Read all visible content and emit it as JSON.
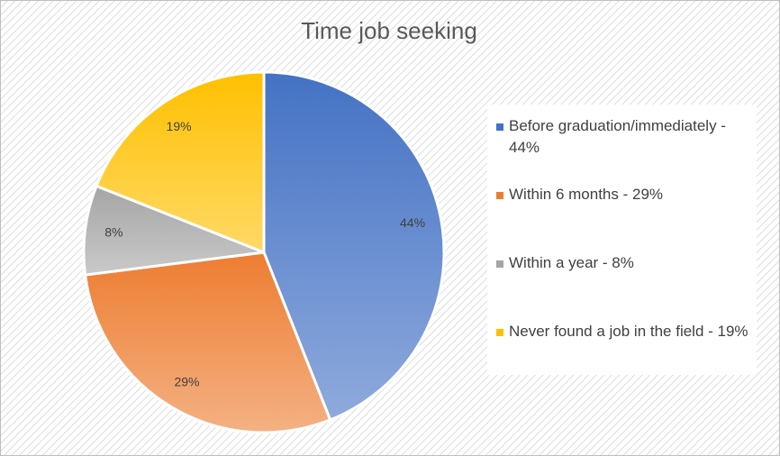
{
  "chart_data": {
    "type": "pie",
    "title": "Time job seeking",
    "categories": [
      "Before graduation/immediately - 44%",
      "Within 6 months - 29%",
      "Within a year - 8%",
      "Never found a job in the field - 19%"
    ],
    "values": [
      44,
      29,
      8,
      19
    ],
    "value_labels": [
      "44%",
      "29%",
      "8%",
      "19%"
    ],
    "colors": [
      "#4472c4",
      "#ed7d31",
      "#a5a5a5",
      "#ffc000"
    ],
    "legend": "right"
  }
}
